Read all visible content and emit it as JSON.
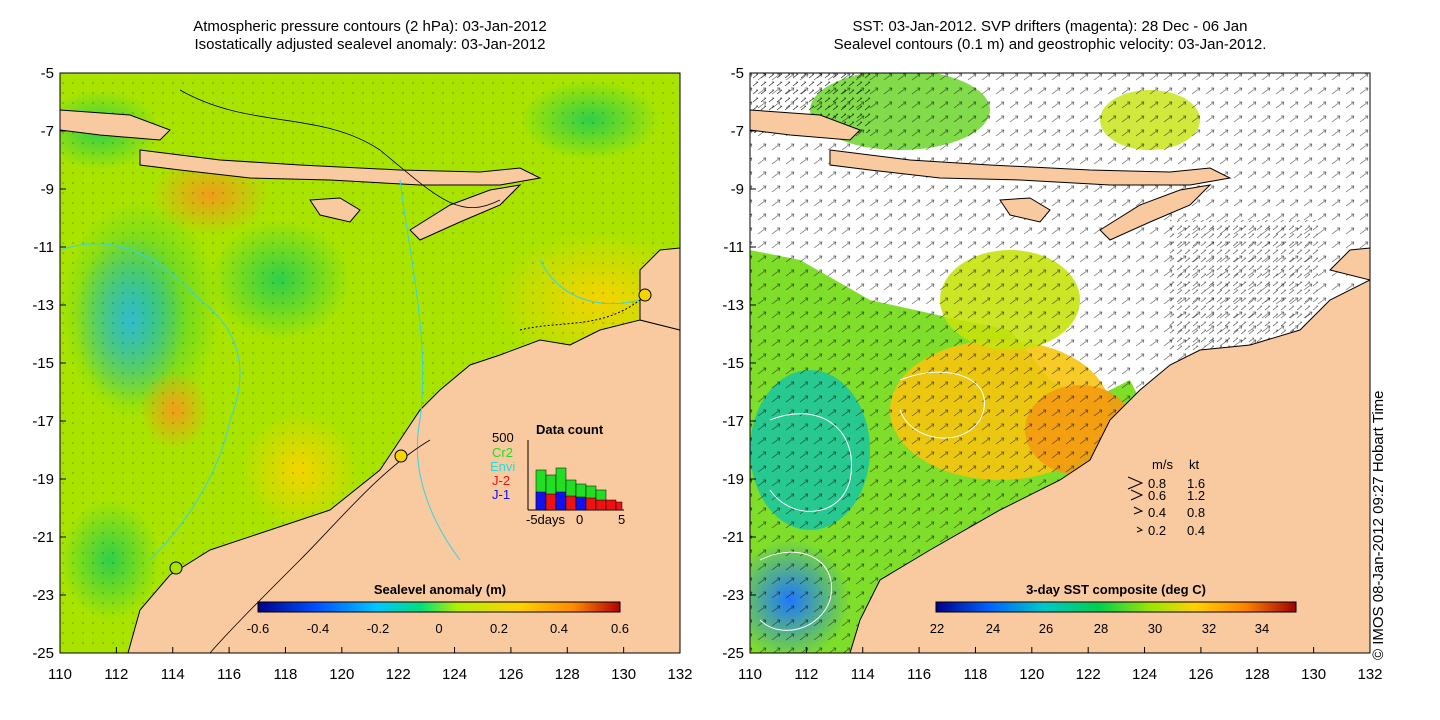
{
  "left_panel": {
    "title_line1": "Atmospheric pressure contours (2 hPa): 03-Jan-2012",
    "title_line2": "Isostatically adjusted sealevel anomaly: 03-Jan-2012",
    "colorbar_label": "Sealevel anomaly (m)",
    "colorbar_ticks": [
      "-0.6",
      "-0.4",
      "-0.2",
      "0",
      "0.2",
      "0.4",
      "0.6"
    ],
    "data_count": {
      "title": "Data count",
      "max_label": "500",
      "satellites": [
        {
          "name": "Cr2",
          "color": "#22dd22"
        },
        {
          "name": "Envi",
          "color": "#22dddd"
        },
        {
          "name": "J-2",
          "color": "#ee1111"
        },
        {
          "name": "J-1",
          "color": "#1111ee"
        }
      ],
      "xaxis_labels": [
        "-5days",
        "0",
        "5"
      ]
    }
  },
  "right_panel": {
    "title_line1": "SST: 03-Jan-2012. SVP drifters (magenta): 28 Dec - 06 Jan",
    "title_line2": "Sealevel contours (0.1 m) and geostrophic velocity: 03-Jan-2012.",
    "colorbar_label": "3-day SST composite (deg C)",
    "colorbar_ticks": [
      "22",
      "24",
      "26",
      "28",
      "30",
      "32",
      "34"
    ],
    "velocity_legend": {
      "header_ms": "m/s",
      "header_kt": "kt",
      "rows": [
        {
          "ms": "0.8",
          "kt": "1.6"
        },
        {
          "ms": "0.6",
          "kt": "1.2"
        },
        {
          "ms": "0.4",
          "kt": "0.8"
        },
        {
          "ms": "0.2",
          "kt": "0.4"
        }
      ]
    }
  },
  "axes": {
    "lat_labels": [
      "-5",
      "-7",
      "-9",
      "-11",
      "-13",
      "-15",
      "-17",
      "-19",
      "-21",
      "-23",
      "-25"
    ],
    "lon_labels": [
      "110",
      "112",
      "114",
      "116",
      "118",
      "120",
      "122",
      "124",
      "126",
      "128",
      "130",
      "132"
    ]
  },
  "credit": "© IMOS 08-Jan-2012 09:27 Hobart Time",
  "colors": {
    "land": "#f9c9a0",
    "sla_scale": [
      "#00008b",
      "#0050ff",
      "#00c8ff",
      "#00e07a",
      "#b4ef00",
      "#ffd200",
      "#ff8c00",
      "#b40000"
    ],
    "sst_scale": [
      "#00008b",
      "#0064ff",
      "#00c8c8",
      "#00d050",
      "#a0e600",
      "#ffd200",
      "#ff8200",
      "#a00000"
    ]
  }
}
